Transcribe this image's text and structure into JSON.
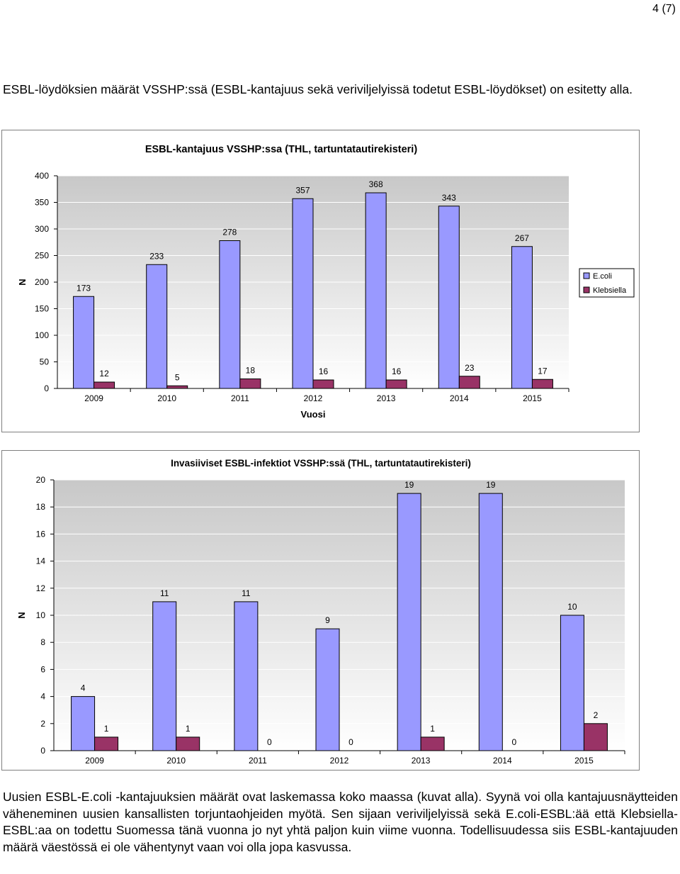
{
  "page": {
    "number": "4 (7)"
  },
  "intro": "ESBL-löydöksien määrät VSSHP:ssä (ESBL-kantajuus sekä veriviljelyissä todetut ESBL-löydökset) on esitetty alla.",
  "colors": {
    "ecoli": "#9999ff",
    "klebsiella": "#993366",
    "plot_bg_top": "#c8c8c8",
    "plot_bg_bottom": "#ffffff",
    "frame": "#7f7f7f"
  },
  "chart_data": [
    {
      "type": "bar",
      "title": "ESBL-kantajuus VSSHP:ssa (THL, tartuntatautirekisteri)",
      "xlabel": "Vuosi",
      "ylabel": "N",
      "categories": [
        "2009",
        "2010",
        "2011",
        "2012",
        "2013",
        "2014",
        "2015"
      ],
      "ylim": [
        0,
        400
      ],
      "yticks": [
        0,
        50,
        100,
        150,
        200,
        250,
        300,
        350,
        400
      ],
      "legend_position": "right",
      "series": [
        {
          "name": "E.coli",
          "values": [
            173,
            233,
            278,
            357,
            368,
            343,
            267
          ],
          "color": "#9999ff"
        },
        {
          "name": "Klebsiella",
          "values": [
            12,
            5,
            18,
            16,
            16,
            23,
            17
          ],
          "color": "#993366"
        }
      ]
    },
    {
      "type": "bar",
      "title": "Invasiiviset ESBL-infektiot VSSHP:ssä (THL, tartuntatautirekisteri)",
      "xlabel": "",
      "ylabel": "N",
      "categories": [
        "2009",
        "2010",
        "2011",
        "2012",
        "2013",
        "2014",
        "2015"
      ],
      "ylim": [
        0,
        20
      ],
      "yticks": [
        0,
        2,
        4,
        6,
        8,
        10,
        12,
        14,
        16,
        18,
        20
      ],
      "series": [
        {
          "values": [
            4,
            11,
            11,
            9,
            19,
            19,
            10
          ],
          "color": "#9999ff"
        },
        {
          "values": [
            1,
            1,
            0,
            0,
            1,
            0,
            2
          ],
          "color": "#993366"
        }
      ]
    }
  ],
  "body_text": "Uusien ESBL-E.coli -kantajuuksien määrät ovat laskemassa koko maassa (kuvat alla). Syynä voi olla kantajuusnäytteiden väheneminen uusien kansallisten torjuntaohjeiden myötä. Sen sijaan veriviljelyissä sekä E.coli-ESBL:ää että Klebsiella-ESBL:aa on todettu Suomessa tänä vuonna jo nyt yhtä paljon kuin viime vuonna. Todellisuudessa siis ESBL-kantajuuden määrä väestössä ei ole vähentynyt vaan voi olla jopa kasvussa."
}
